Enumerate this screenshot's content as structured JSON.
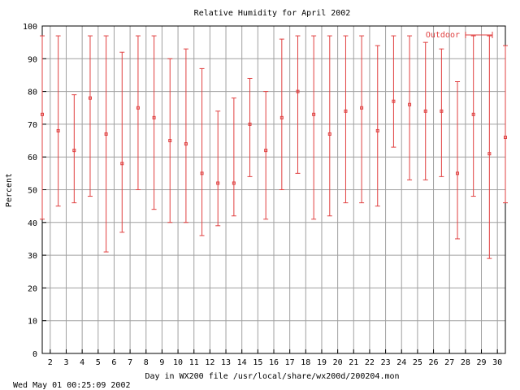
{
  "chart_data": {
    "type": "scatter",
    "title": "Relative Humidity for April 2002",
    "xlabel": "Day in WX200 file /usr/local/share/wx200d/200204.mon",
    "ylabel": "Percent",
    "footer": "Wed May 01 00:25:09 2002",
    "xlim": [
      1.5,
      30.5
    ],
    "ylim": [
      0,
      100
    ],
    "x_ticks": [
      2,
      3,
      4,
      5,
      6,
      7,
      8,
      9,
      10,
      11,
      12,
      13,
      14,
      15,
      16,
      17,
      18,
      19,
      20,
      21,
      22,
      23,
      24,
      25,
      26,
      27,
      28,
      29,
      30
    ],
    "y_ticks": [
      0,
      10,
      20,
      30,
      40,
      50,
      60,
      70,
      80,
      90,
      100
    ],
    "grid": true,
    "legend_position": "top-right",
    "series": [
      {
        "name": "Outdoor",
        "color": "#e04040",
        "points": [
          {
            "x": 1.5,
            "low": 41,
            "mean": 73,
            "high": 97
          },
          {
            "x": 2.5,
            "low": 45,
            "mean": 68,
            "high": 97
          },
          {
            "x": 3.5,
            "low": 46,
            "mean": 62,
            "high": 79
          },
          {
            "x": 4.5,
            "low": 48,
            "mean": 78,
            "high": 97
          },
          {
            "x": 5.5,
            "low": 31,
            "mean": 67,
            "high": 97
          },
          {
            "x": 6.5,
            "low": 37,
            "mean": 58,
            "high": 92
          },
          {
            "x": 7.5,
            "low": 50,
            "mean": 75,
            "high": 97
          },
          {
            "x": 8.5,
            "low": 44,
            "mean": 72,
            "high": 97
          },
          {
            "x": 9.5,
            "low": 40,
            "mean": 65,
            "high": 90
          },
          {
            "x": 10.5,
            "low": 40,
            "mean": 64,
            "high": 93
          },
          {
            "x": 11.5,
            "low": 36,
            "mean": 55,
            "high": 87
          },
          {
            "x": 12.5,
            "low": 39,
            "mean": 52,
            "high": 74
          },
          {
            "x": 13.5,
            "low": 42,
            "mean": 52,
            "high": 78
          },
          {
            "x": 14.5,
            "low": 54,
            "mean": 70,
            "high": 84
          },
          {
            "x": 15.5,
            "low": 41,
            "mean": 62,
            "high": 80
          },
          {
            "x": 16.5,
            "low": 50,
            "mean": 72,
            "high": 96
          },
          {
            "x": 17.5,
            "low": 55,
            "mean": 80,
            "high": 97
          },
          {
            "x": 18.5,
            "low": 41,
            "mean": 73,
            "high": 97
          },
          {
            "x": 19.5,
            "low": 42,
            "mean": 67,
            "high": 97
          },
          {
            "x": 20.5,
            "low": 46,
            "mean": 74,
            "high": 97
          },
          {
            "x": 21.5,
            "low": 46,
            "mean": 75,
            "high": 97
          },
          {
            "x": 22.5,
            "low": 45,
            "mean": 68,
            "high": 94
          },
          {
            "x": 23.5,
            "low": 63,
            "mean": 77,
            "high": 97
          },
          {
            "x": 24.5,
            "low": 53,
            "mean": 76,
            "high": 97
          },
          {
            "x": 25.5,
            "low": 53,
            "mean": 74,
            "high": 95
          },
          {
            "x": 26.5,
            "low": 54,
            "mean": 74,
            "high": 93
          },
          {
            "x": 27.5,
            "low": 35,
            "mean": 55,
            "high": 83
          },
          {
            "x": 28.5,
            "low": 48,
            "mean": 73,
            "high": 97
          },
          {
            "x": 29.5,
            "low": 29,
            "mean": 61,
            "high": 97
          },
          {
            "x": 30.5,
            "low": 46,
            "mean": 66,
            "high": 94
          }
        ]
      }
    ]
  }
}
